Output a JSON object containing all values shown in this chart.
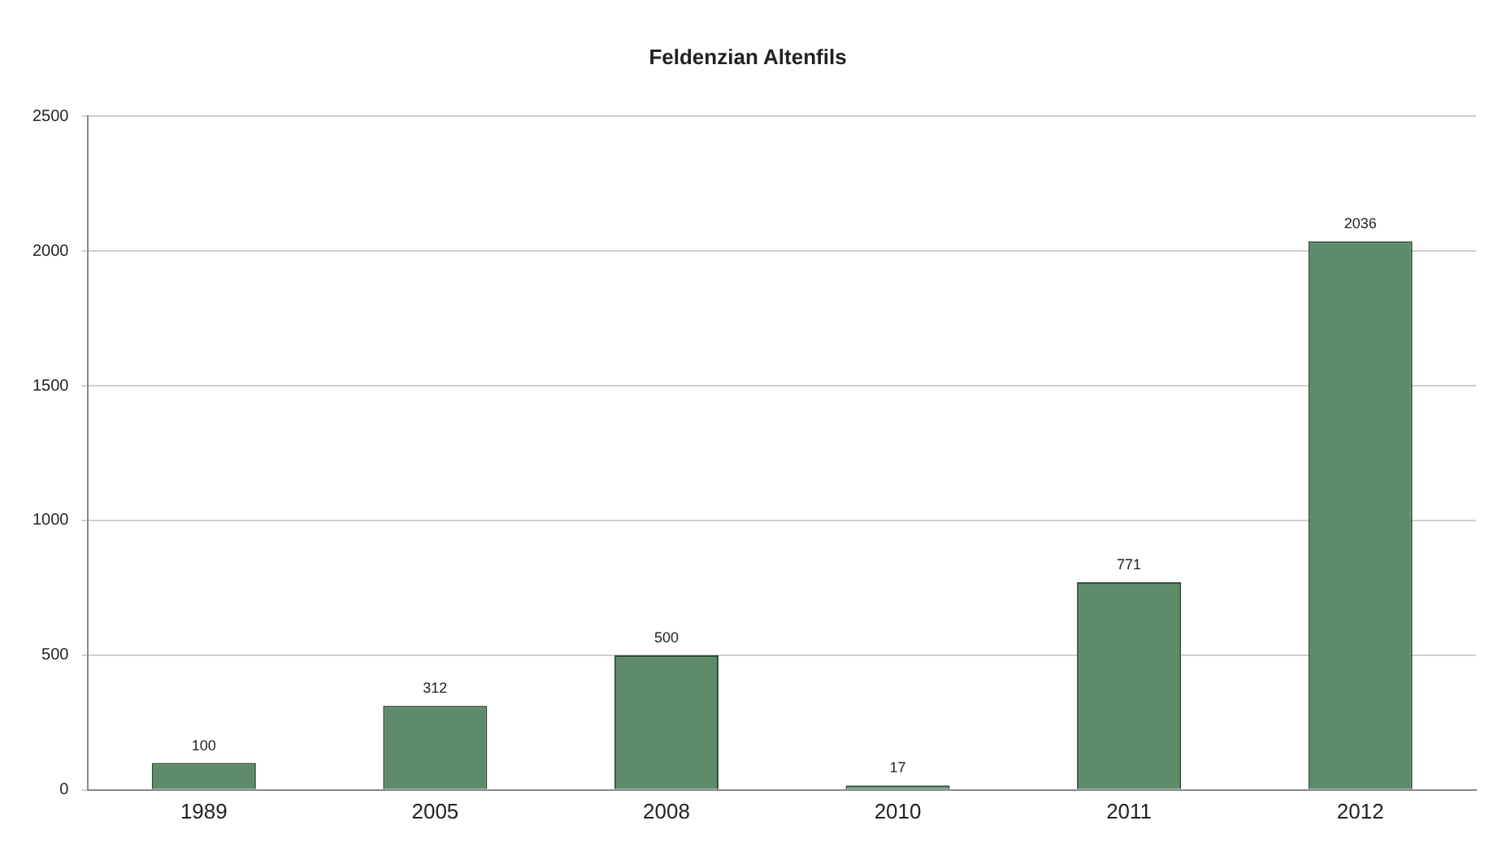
{
  "chart_data": {
    "type": "bar",
    "title": "Feldenzian Altenfils",
    "categories": [
      "1989",
      "2005",
      "2008",
      "2010",
      "2011",
      "2012"
    ],
    "values": [
      100,
      312,
      500,
      17,
      771,
      2036
    ],
    "color": "#5e8c6a",
    "ylim": [
      0,
      2500
    ],
    "yticks": [
      0,
      500,
      1000,
      1500,
      2000,
      2500
    ],
    "grid": "y",
    "legend": false,
    "data_labels": true
  }
}
